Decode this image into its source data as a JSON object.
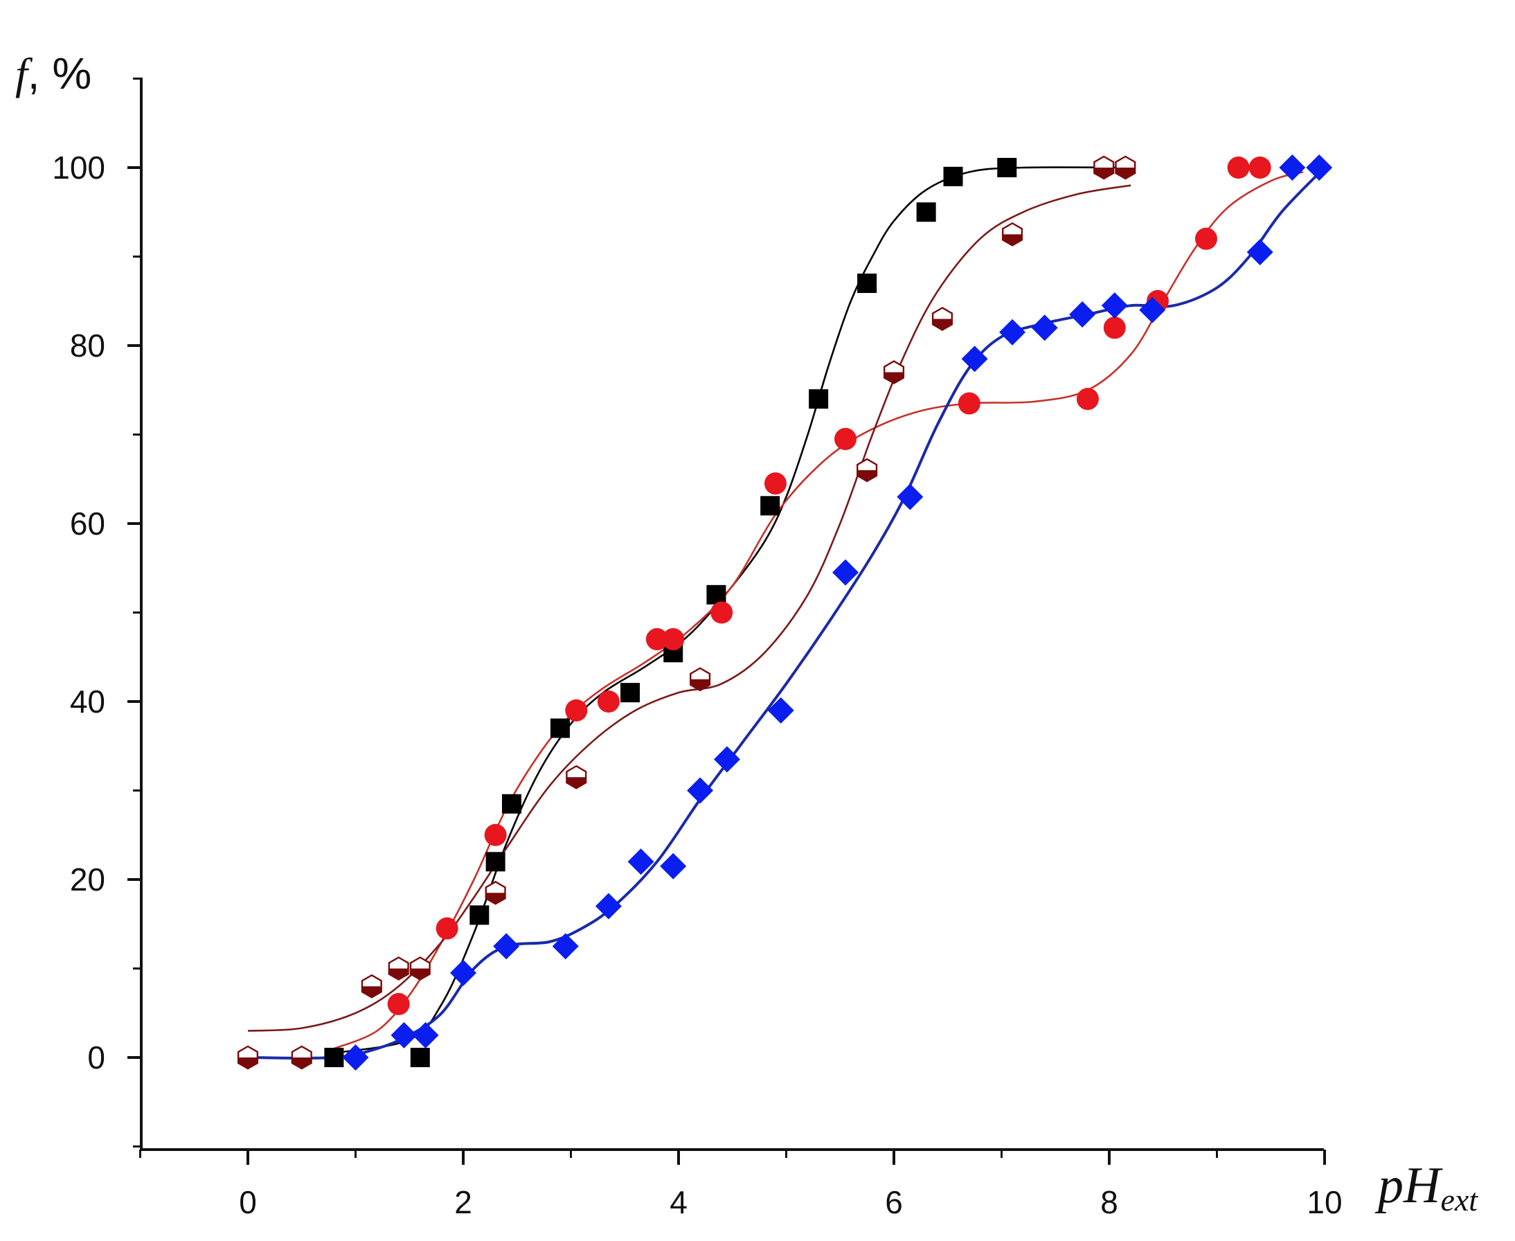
{
  "chart_data": {
    "type": "scatter",
    "title": "",
    "xlabel": {
      "main": "pH",
      "sub": "ext"
    },
    "ylabel": {
      "main": "f",
      "unit": ", %"
    },
    "xlim": [
      -1,
      10
    ],
    "ylim": [
      -10,
      110
    ],
    "x_ticks": [
      0,
      2,
      4,
      6,
      8,
      10
    ],
    "y_ticks": [
      0,
      20,
      40,
      60,
      80,
      100
    ],
    "grid": false,
    "legend": "none",
    "series": [
      {
        "marker": "square",
        "color": "#000000",
        "line_color": "#000000",
        "points": [
          [
            0.8,
            0
          ],
          [
            1.6,
            0
          ],
          [
            2.15,
            16
          ],
          [
            2.3,
            22
          ],
          [
            2.45,
            28.5
          ],
          [
            2.9,
            37
          ],
          [
            3.55,
            41
          ],
          [
            3.95,
            45.5
          ],
          [
            4.35,
            52
          ],
          [
            4.85,
            62
          ],
          [
            5.3,
            74
          ],
          [
            5.75,
            87
          ],
          [
            6.3,
            95
          ],
          [
            6.55,
            99
          ],
          [
            7.05,
            100
          ]
        ],
        "curve": [
          [
            0.8,
            0.5
          ],
          [
            1.5,
            2
          ],
          [
            1.8,
            6
          ],
          [
            2.1,
            14
          ],
          [
            2.4,
            24
          ],
          [
            2.7,
            32
          ],
          [
            3.0,
            37.5
          ],
          [
            3.3,
            41
          ],
          [
            3.7,
            44
          ],
          [
            4.1,
            47.5
          ],
          [
            4.5,
            53
          ],
          [
            4.8,
            58
          ],
          [
            5.0,
            63
          ],
          [
            5.2,
            70
          ],
          [
            5.4,
            78
          ],
          [
            5.6,
            85
          ],
          [
            5.8,
            90
          ],
          [
            6.0,
            94
          ],
          [
            6.3,
            97.5
          ],
          [
            6.7,
            99.5
          ],
          [
            7.2,
            100
          ],
          [
            8.2,
            100
          ]
        ]
      },
      {
        "marker": "circle",
        "color": "#e8161e",
        "line_color": "#c8302a",
        "points": [
          [
            1.4,
            6
          ],
          [
            1.85,
            14.5
          ],
          [
            2.3,
            25
          ],
          [
            3.05,
            39
          ],
          [
            3.35,
            40
          ],
          [
            3.8,
            47
          ],
          [
            3.95,
            47
          ],
          [
            4.4,
            50
          ],
          [
            4.9,
            64.5
          ],
          [
            5.55,
            69.5
          ],
          [
            6.7,
            73.5
          ],
          [
            7.8,
            74
          ],
          [
            8.05,
            82
          ],
          [
            8.45,
            85
          ],
          [
            8.9,
            92
          ],
          [
            9.2,
            100
          ],
          [
            9.4,
            100
          ]
        ],
        "curve": [
          [
            0.8,
            1
          ],
          [
            1.2,
            3
          ],
          [
            1.5,
            7
          ],
          [
            1.8,
            13
          ],
          [
            2.1,
            20
          ],
          [
            2.4,
            28
          ],
          [
            2.7,
            34
          ],
          [
            3.0,
            38.5
          ],
          [
            3.3,
            41.5
          ],
          [
            3.7,
            44.5
          ],
          [
            4.1,
            48
          ],
          [
            4.5,
            53
          ],
          [
            4.9,
            61
          ],
          [
            5.3,
            66.5
          ],
          [
            5.7,
            70
          ],
          [
            6.2,
            72.5
          ],
          [
            6.7,
            73.5
          ],
          [
            7.3,
            73.7
          ],
          [
            7.8,
            75
          ],
          [
            8.2,
            79
          ],
          [
            8.5,
            85
          ],
          [
            8.8,
            91
          ],
          [
            9.1,
            95.5
          ],
          [
            9.5,
            98.5
          ],
          [
            9.8,
            99.5
          ]
        ]
      },
      {
        "marker": "hexagon-half",
        "color": "#7a0a0a",
        "line_color": "#7a1a1a",
        "points": [
          [
            0,
            0
          ],
          [
            0.5,
            0
          ],
          [
            1.15,
            8
          ],
          [
            1.4,
            10
          ],
          [
            1.6,
            10
          ],
          [
            2.3,
            18.5
          ],
          [
            3.05,
            31.5
          ],
          [
            4.2,
            42.5
          ],
          [
            5.75,
            66
          ],
          [
            6.0,
            77
          ],
          [
            6.45,
            83
          ],
          [
            7.1,
            92.5
          ],
          [
            7.95,
            100
          ],
          [
            8.15,
            100
          ]
        ],
        "curve": [
          [
            0,
            3
          ],
          [
            0.5,
            3.3
          ],
          [
            1.0,
            5
          ],
          [
            1.4,
            8
          ],
          [
            1.8,
            13
          ],
          [
            2.1,
            18
          ],
          [
            2.4,
            23.5
          ],
          [
            2.8,
            30.5
          ],
          [
            3.2,
            35.5
          ],
          [
            3.6,
            39
          ],
          [
            4.0,
            41
          ],
          [
            4.4,
            42
          ],
          [
            4.8,
            45.5
          ],
          [
            5.2,
            52
          ],
          [
            5.5,
            60
          ],
          [
            5.8,
            70
          ],
          [
            6.1,
            79
          ],
          [
            6.4,
            86
          ],
          [
            6.8,
            92
          ],
          [
            7.2,
            95
          ],
          [
            7.7,
            97
          ],
          [
            8.2,
            98
          ]
        ]
      },
      {
        "marker": "diamond",
        "color": "#0a1ef0",
        "line_color": "#1a2aa8",
        "points": [
          [
            1.0,
            0
          ],
          [
            1.45,
            2.5
          ],
          [
            1.65,
            2.5
          ],
          [
            2.0,
            9.5
          ],
          [
            2.4,
            12.5
          ],
          [
            2.95,
            12.5
          ],
          [
            3.35,
            17
          ],
          [
            3.65,
            22
          ],
          [
            3.95,
            21.5
          ],
          [
            4.2,
            30
          ],
          [
            4.45,
            33.5
          ],
          [
            4.95,
            39
          ],
          [
            5.55,
            54.5
          ],
          [
            6.15,
            63
          ],
          [
            6.75,
            78.5
          ],
          [
            7.1,
            81.5
          ],
          [
            7.4,
            82
          ],
          [
            7.75,
            83.5
          ],
          [
            8.05,
            84.5
          ],
          [
            8.4,
            84
          ],
          [
            9.4,
            90.5
          ],
          [
            9.7,
            100
          ],
          [
            9.95,
            100
          ]
        ],
        "curve": [
          [
            0,
            0
          ],
          [
            0.8,
            0
          ],
          [
            1.2,
            1
          ],
          [
            1.5,
            2.5
          ],
          [
            1.8,
            5
          ],
          [
            2.1,
            10
          ],
          [
            2.4,
            12.5
          ],
          [
            2.8,
            13
          ],
          [
            3.1,
            14.5
          ],
          [
            3.4,
            17
          ],
          [
            3.8,
            22
          ],
          [
            4.2,
            29
          ],
          [
            4.6,
            35.5
          ],
          [
            5.0,
            42
          ],
          [
            5.4,
            49
          ],
          [
            5.8,
            56.5
          ],
          [
            6.1,
            63
          ],
          [
            6.4,
            71
          ],
          [
            6.7,
            77.5
          ],
          [
            7.0,
            81
          ],
          [
            7.4,
            82.5
          ],
          [
            7.8,
            83.5
          ],
          [
            8.2,
            84.5
          ],
          [
            8.6,
            84.5
          ],
          [
            9.0,
            86.5
          ],
          [
            9.3,
            90
          ],
          [
            9.6,
            95
          ],
          [
            10.0,
            100
          ]
        ]
      }
    ]
  }
}
